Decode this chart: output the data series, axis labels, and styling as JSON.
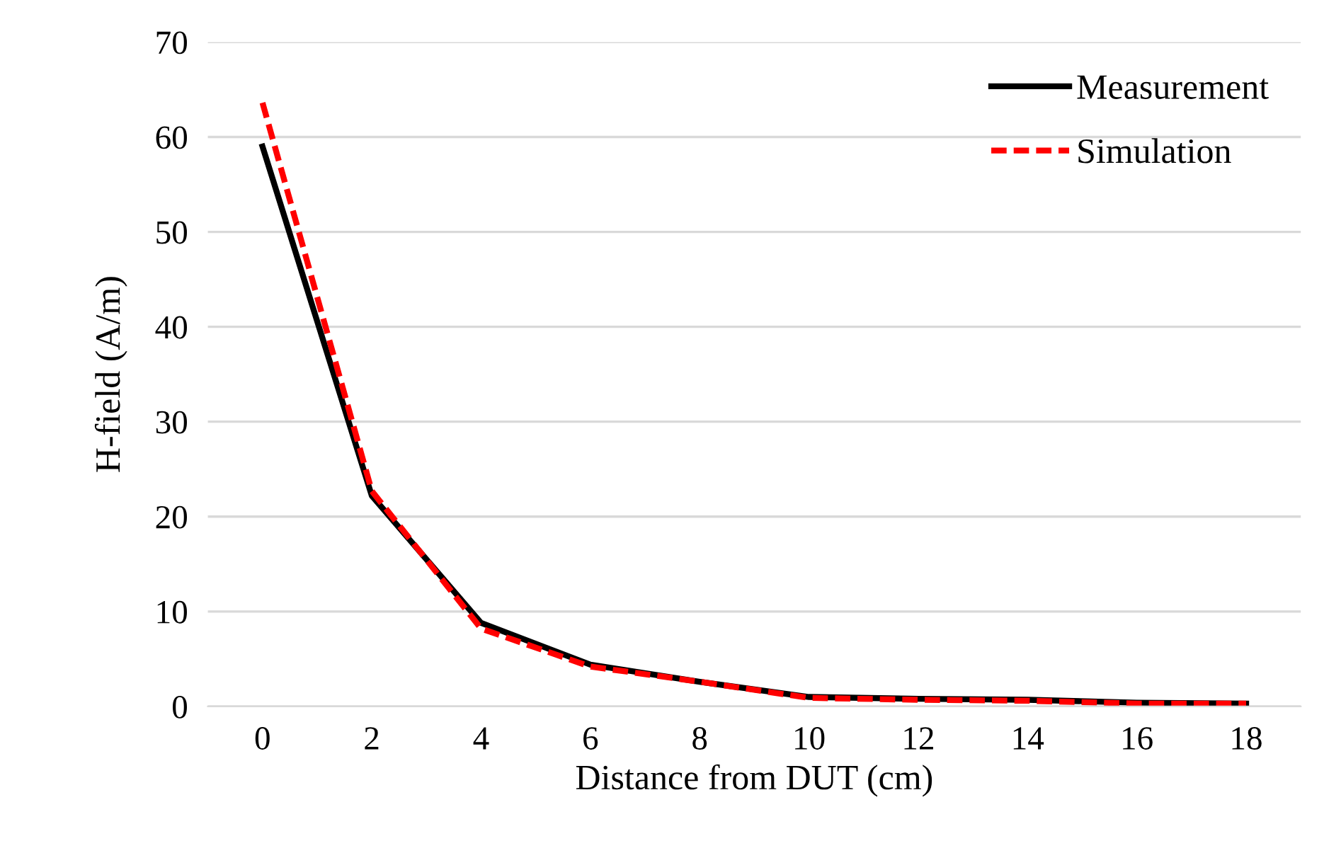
{
  "chart_data": {
    "type": "line",
    "xlabel": "Distance from DUT (cm)",
    "ylabel": "H-field (A/m)",
    "categories": [
      "0",
      "2",
      "4",
      "6",
      "8",
      "10",
      "12",
      "14",
      "16",
      "18"
    ],
    "series": [
      {
        "name": "Measurement",
        "color": "#000000",
        "line_style": "solid",
        "values": [
          59,
          22.2,
          8.8,
          4.4,
          2.6,
          1.0,
          0.8,
          0.7,
          0.4,
          0.3
        ]
      },
      {
        "name": "Simulation",
        "color": "#ff0000",
        "line_style": "dashed",
        "values": [
          63.6,
          22.7,
          8.2,
          4.2,
          2.6,
          0.9,
          0.7,
          0.6,
          0.3,
          0.3
        ]
      }
    ],
    "ylim": [
      0,
      70
    ],
    "yticks": [
      0,
      10,
      20,
      30,
      40,
      50,
      60,
      70
    ],
    "grid": "y",
    "legend": "top right"
  }
}
